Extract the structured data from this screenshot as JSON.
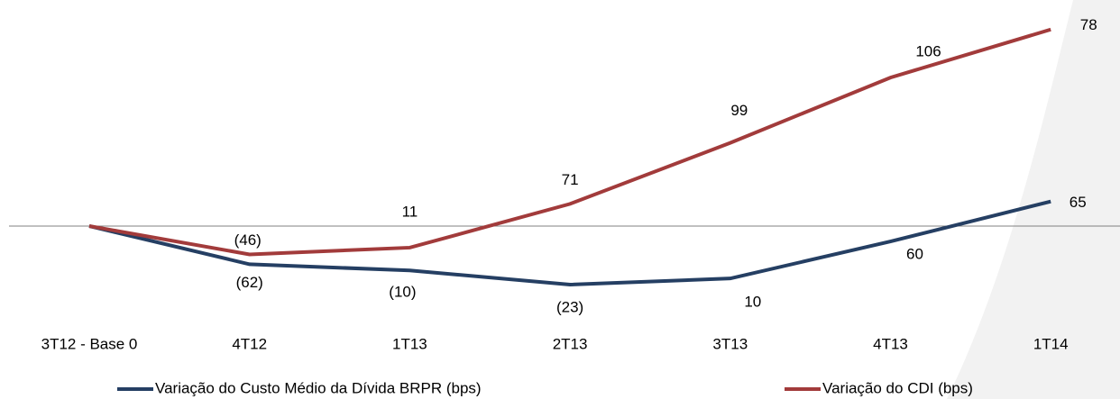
{
  "chart_data": {
    "type": "line",
    "categories": [
      "3T12 - Base 0",
      "4T12",
      "1T13",
      "2T13",
      "3T13",
      "4T13",
      "1T14"
    ],
    "series": [
      {
        "name": "Variação do Custo Médio da Dívida BRPR  (bps)",
        "color": "#253f63",
        "values": [
          0,
          -62,
          -10,
          -23,
          10,
          60,
          65
        ],
        "value_labels": [
          null,
          "(62)",
          "(10)",
          "(23)",
          "10",
          "60",
          "65"
        ]
      },
      {
        "name": "Variação do CDI (bps)",
        "color": "#a23b3b",
        "values": [
          0,
          -46,
          11,
          71,
          99,
          106,
          78
        ],
        "value_labels": [
          null,
          "(46)",
          "11",
          "71",
          "99",
          "106",
          "78"
        ]
      }
    ],
    "cumulative": true
  }
}
